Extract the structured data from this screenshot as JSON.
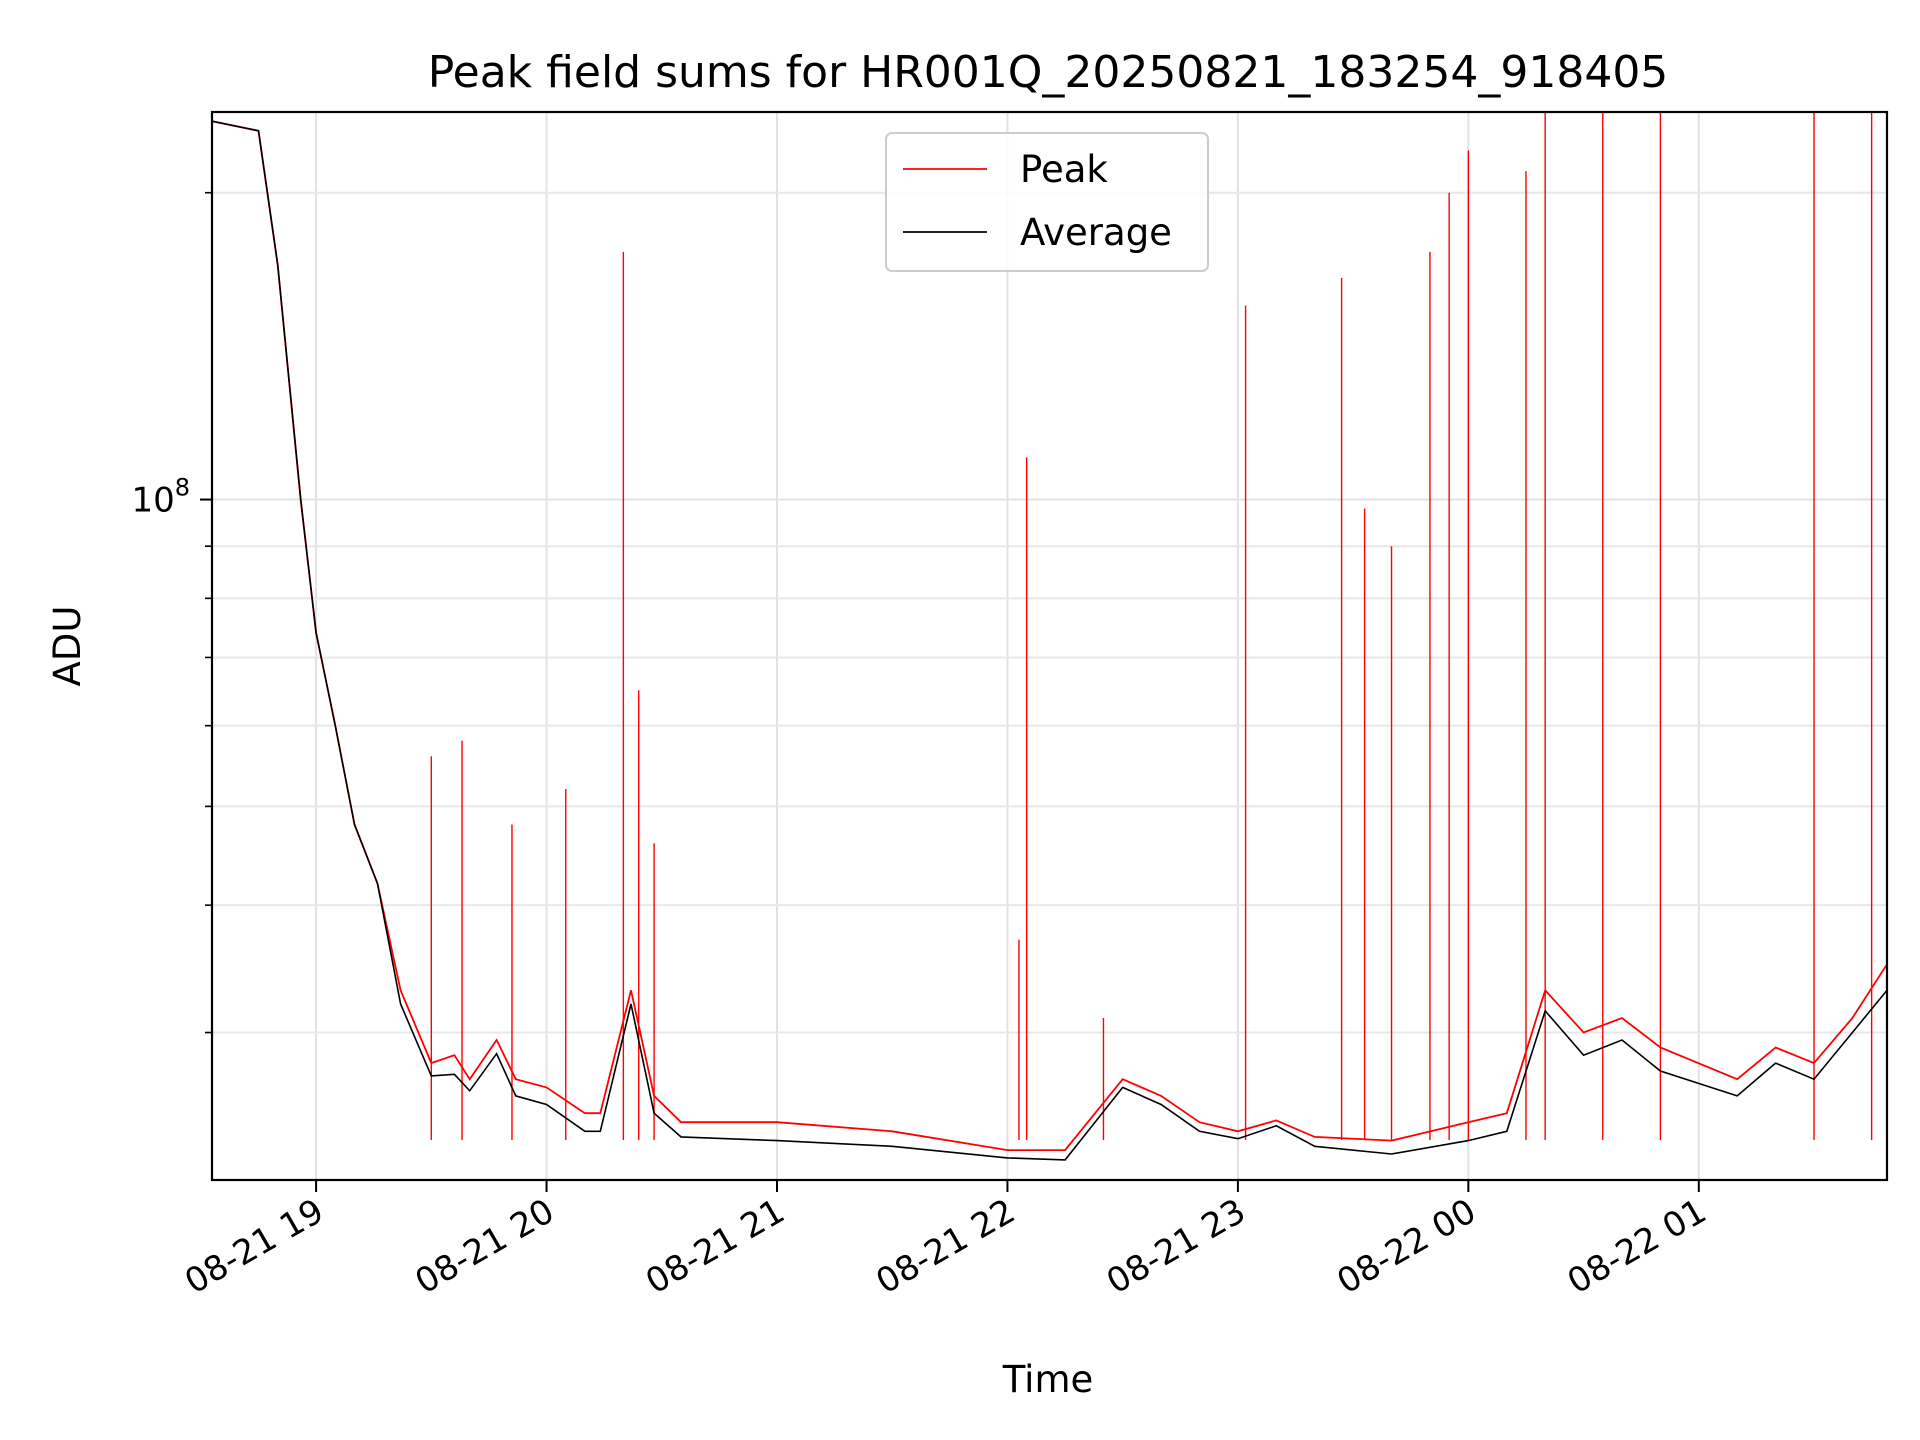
{
  "chart_data": {
    "type": "line",
    "title": "Peak field sums for HR001Q_20250821_183254_918405",
    "xlabel": "Time",
    "ylabel": "ADU",
    "y_scale": "log",
    "ylim": [
      21500000,
      240000000
    ],
    "xlim": [
      "2025-08-21 18:32:54",
      "2025-08-22 01:49:00"
    ],
    "x_tick_labels": [
      "08-21 19",
      "08-21 20",
      "08-21 21",
      "08-21 22",
      "08-21 23",
      "08-22 00",
      "08-22 01"
    ],
    "x_ticks": [
      "2025-08-21 19:00",
      "2025-08-21 20:00",
      "2025-08-21 21:00",
      "2025-08-21 22:00",
      "2025-08-21 23:00",
      "2025-08-22 00:00",
      "2025-08-22 01:00"
    ],
    "y_tick_labels": [
      {
        "base": "10",
        "exp": "8",
        "value": 100000000
      }
    ],
    "y_minor_ticks": [
      30000000,
      40000000,
      50000000,
      60000000,
      70000000,
      80000000,
      90000000,
      200000000
    ],
    "grid": true,
    "legend_position": "top-center",
    "series": [
      {
        "name": "Peak",
        "color": "#ff0000",
        "points": [
          [
            "2025-08-21 18:33",
            235000000
          ],
          [
            "2025-08-21 18:45",
            230000000
          ],
          [
            "2025-08-21 18:50",
            170000000
          ],
          [
            "2025-08-21 18:56",
            100000000
          ],
          [
            "2025-08-21 19:00",
            74000000
          ],
          [
            "2025-08-21 19:05",
            60000000
          ],
          [
            "2025-08-21 19:10",
            48000000
          ],
          [
            "2025-08-21 19:16",
            42000000
          ],
          [
            "2025-08-21 19:22",
            33000000
          ],
          [
            "2025-08-21 19:30",
            28000000
          ],
          [
            "2025-08-21 19:36",
            28500000
          ],
          [
            "2025-08-21 19:40",
            27000000
          ],
          [
            "2025-08-21 19:47",
            29500000
          ],
          [
            "2025-08-21 19:52",
            27000000
          ],
          [
            "2025-08-21 20:00",
            26500000
          ],
          [
            "2025-08-21 20:10",
            25000000
          ],
          [
            "2025-08-21 20:14",
            25000000
          ],
          [
            "2025-08-21 20:22",
            33000000
          ],
          [
            "2025-08-21 20:28",
            26000000
          ],
          [
            "2025-08-21 20:35",
            24500000
          ],
          [
            "2025-08-21 21:00",
            24500000
          ],
          [
            "2025-08-21 21:30",
            24000000
          ],
          [
            "2025-08-21 22:00",
            23000000
          ],
          [
            "2025-08-21 22:15",
            23000000
          ],
          [
            "2025-08-21 22:30",
            27000000
          ],
          [
            "2025-08-21 22:40",
            26000000
          ],
          [
            "2025-08-21 22:50",
            24500000
          ],
          [
            "2025-08-21 23:00",
            24000000
          ],
          [
            "2025-08-21 23:10",
            24600000
          ],
          [
            "2025-08-21 23:20",
            23700000
          ],
          [
            "2025-08-21 23:40",
            23500000
          ],
          [
            "2025-08-22 00:00",
            24500000
          ],
          [
            "2025-08-22 00:10",
            25000000
          ],
          [
            "2025-08-22 00:20",
            33000000
          ],
          [
            "2025-08-22 00:30",
            30000000
          ],
          [
            "2025-08-22 00:40",
            31000000
          ],
          [
            "2025-08-22 00:50",
            29000000
          ],
          [
            "2025-08-22 01:10",
            27000000
          ],
          [
            "2025-08-22 01:20",
            29000000
          ],
          [
            "2025-08-22 01:30",
            28000000
          ],
          [
            "2025-08-22 01:40",
            31000000
          ],
          [
            "2025-08-22 01:49",
            35000000
          ]
        ],
        "spikes": [
          [
            "2025-08-21 19:30",
            56000000
          ],
          [
            "2025-08-21 19:38",
            58000000
          ],
          [
            "2025-08-21 19:51",
            48000000
          ],
          [
            "2025-08-21 20:05",
            52000000
          ],
          [
            "2025-08-21 20:20",
            175000000
          ],
          [
            "2025-08-21 20:24",
            65000000
          ],
          [
            "2025-08-21 20:28",
            46000000
          ],
          [
            "2025-08-21 22:05",
            110000000
          ],
          [
            "2025-08-21 22:03",
            37000000
          ],
          [
            "2025-08-21 22:25",
            31000000
          ],
          [
            "2025-08-21 23:02",
            155000000
          ],
          [
            "2025-08-21 23:27",
            165000000
          ],
          [
            "2025-08-21 23:33",
            98000000
          ],
          [
            "2025-08-21 23:40",
            90000000
          ],
          [
            "2025-08-21 23:50",
            175000000
          ],
          [
            "2025-08-21 23:55",
            200000000
          ],
          [
            "2025-08-22 00:00",
            220000000
          ],
          [
            "2025-08-22 00:15",
            210000000
          ],
          [
            "2025-08-22 00:20",
            240000000
          ],
          [
            "2025-08-22 00:35",
            240000000
          ],
          [
            "2025-08-22 00:50",
            240000000
          ],
          [
            "2025-08-22 01:30",
            240000000
          ],
          [
            "2025-08-22 01:45",
            240000000
          ]
        ]
      },
      {
        "name": "Average",
        "color": "#000000",
        "points": [
          [
            "2025-08-21 18:33",
            235000000
          ],
          [
            "2025-08-21 18:45",
            230000000
          ],
          [
            "2025-08-21 18:50",
            170000000
          ],
          [
            "2025-08-21 18:56",
            100000000
          ],
          [
            "2025-08-21 19:00",
            74000000
          ],
          [
            "2025-08-21 19:05",
            60000000
          ],
          [
            "2025-08-21 19:10",
            48000000
          ],
          [
            "2025-08-21 19:16",
            42000000
          ],
          [
            "2025-08-21 19:22",
            32000000
          ],
          [
            "2025-08-21 19:30",
            27200000
          ],
          [
            "2025-08-21 19:36",
            27300000
          ],
          [
            "2025-08-21 19:40",
            26300000
          ],
          [
            "2025-08-21 19:47",
            28600000
          ],
          [
            "2025-08-21 19:52",
            26000000
          ],
          [
            "2025-08-21 20:00",
            25500000
          ],
          [
            "2025-08-21 20:10",
            24000000
          ],
          [
            "2025-08-21 20:14",
            24000000
          ],
          [
            "2025-08-21 20:22",
            32000000
          ],
          [
            "2025-08-21 20:28",
            25000000
          ],
          [
            "2025-08-21 20:35",
            23700000
          ],
          [
            "2025-08-21 21:00",
            23500000
          ],
          [
            "2025-08-21 21:30",
            23200000
          ],
          [
            "2025-08-21 22:00",
            22600000
          ],
          [
            "2025-08-21 22:15",
            22500000
          ],
          [
            "2025-08-21 22:30",
            26500000
          ],
          [
            "2025-08-21 22:40",
            25500000
          ],
          [
            "2025-08-21 22:50",
            24000000
          ],
          [
            "2025-08-21 23:00",
            23600000
          ],
          [
            "2025-08-21 23:10",
            24300000
          ],
          [
            "2025-08-21 23:20",
            23200000
          ],
          [
            "2025-08-21 23:40",
            22800000
          ],
          [
            "2025-08-22 00:00",
            23500000
          ],
          [
            "2025-08-22 00:10",
            24000000
          ],
          [
            "2025-08-22 00:20",
            31500000
          ],
          [
            "2025-08-22 00:30",
            28500000
          ],
          [
            "2025-08-22 00:40",
            29500000
          ],
          [
            "2025-08-22 00:50",
            27500000
          ],
          [
            "2025-08-22 01:10",
            26000000
          ],
          [
            "2025-08-22 01:20",
            28000000
          ],
          [
            "2025-08-22 01:30",
            27000000
          ],
          [
            "2025-08-22 01:40",
            30000000
          ],
          [
            "2025-08-22 01:49",
            33000000
          ]
        ]
      }
    ]
  }
}
